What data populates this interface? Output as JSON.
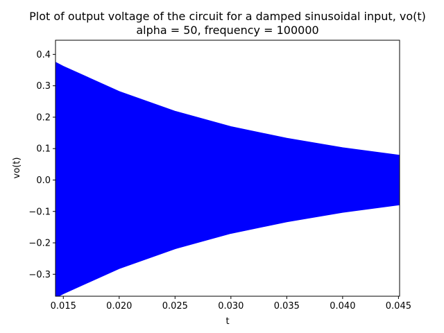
{
  "chart_data": {
    "type": "area",
    "title_line1": "Plot of output voltage of the circuit for a damped sinusoidal input, vo(t)",
    "title_line2": "alpha = 50, frequency = 100000",
    "xlabel": "t",
    "ylabel": "vo(t)",
    "xlim": [
      0.0143,
      0.0451
    ],
    "ylim": [
      -0.37,
      0.445
    ],
    "x_ticks": [
      0.015,
      0.02,
      0.025,
      0.03,
      0.035,
      0.04,
      0.045
    ],
    "x_tick_labels": [
      "0.015",
      "0.020",
      "0.025",
      "0.030",
      "0.035",
      "0.040",
      "0.045"
    ],
    "y_ticks": [
      -0.3,
      -0.2,
      -0.1,
      0.0,
      0.1,
      0.2,
      0.3,
      0.4
    ],
    "y_tick_labels": [
      "−0.3",
      "−0.2",
      "−0.1",
      "0.0",
      "0.1",
      "0.2",
      "0.3",
      "0.4"
    ],
    "grid": false,
    "series": [
      {
        "color": "#0000ff",
        "envelope": {
          "x": [
            0.0143,
            0.015,
            0.02,
            0.025,
            0.03,
            0.035,
            0.04,
            0.0451
          ],
          "upper": [
            0.375,
            0.362,
            0.282,
            0.219,
            0.17,
            0.133,
            0.103,
            0.079
          ],
          "lower": [
            -0.375,
            -0.362,
            -0.282,
            -0.219,
            -0.17,
            -0.133,
            -0.103,
            -0.079
          ]
        }
      }
    ]
  }
}
